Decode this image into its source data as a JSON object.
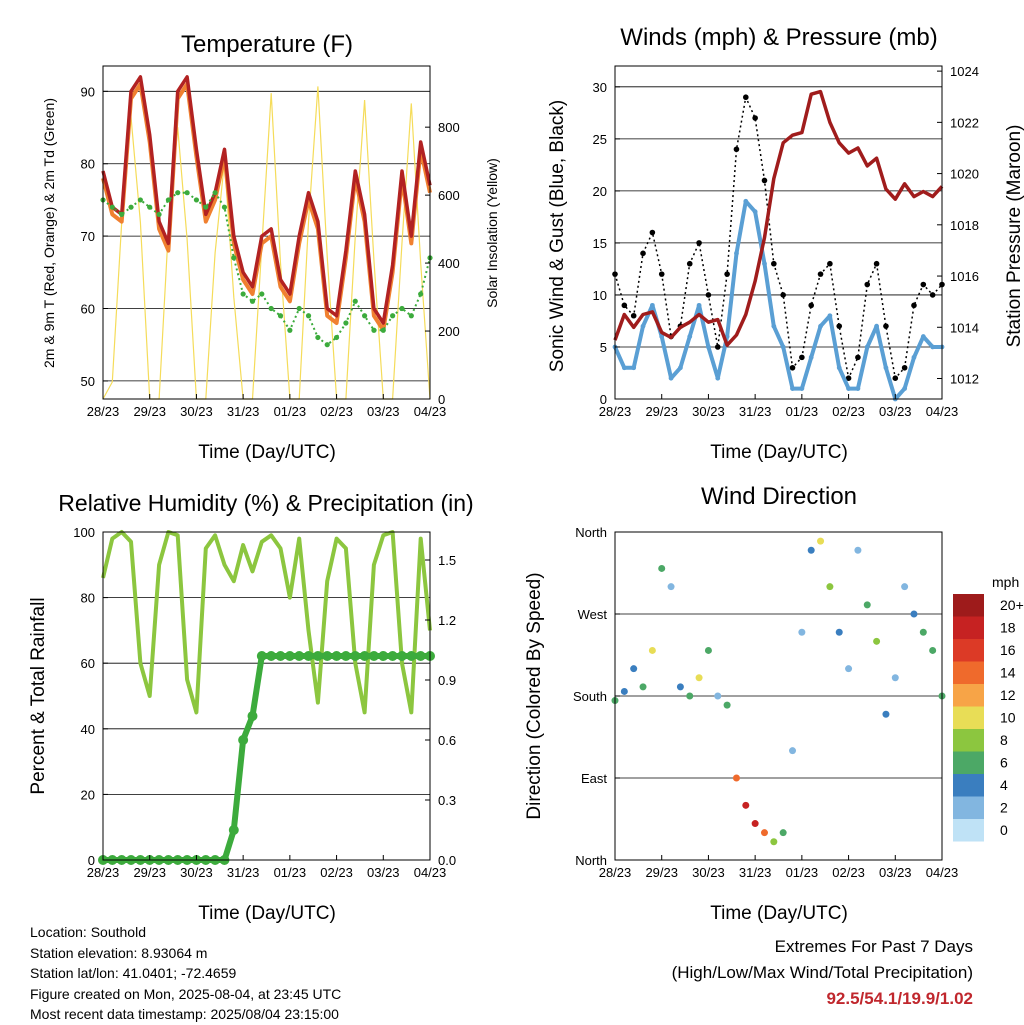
{
  "colors": {
    "temp_2m": "#b22222",
    "temp_9m": "#f08030",
    "dewpoint": "#3cab3c",
    "insolation": "#f5dc5a",
    "gust": "#000000",
    "wind": "#5a9fd4",
    "pressure": "#a01c1c",
    "rh": "#8cc63f",
    "precip": "#3cab3c",
    "extremes": "#c0272d"
  },
  "x_ticks": [
    "28/23",
    "29/23",
    "30/23",
    "31/23",
    "01/23",
    "02/23",
    "03/23",
    "04/23"
  ],
  "panels": {
    "temperature": {
      "title": "Temperature (F)",
      "ylabel_left": "2m & 9m T (Red, Orange) & 2m Td (Green)",
      "ylabel_right": "Solar Insolation (Yellow)",
      "xlabel": "Time (Day/UTC)",
      "yticks_left": [
        "50",
        "60",
        "70",
        "80",
        "90"
      ],
      "yticks_right": [
        "0",
        "200",
        "400",
        "600",
        "800"
      ]
    },
    "winds": {
      "title": "Winds (mph) & Pressure (mb)",
      "ylabel_left": "Sonic Wind & Gust (Blue, Black)",
      "ylabel_right": "Station Pressure (Maroon)",
      "xlabel": "Time (Day/UTC)",
      "yticks_left": [
        "0",
        "5",
        "10",
        "15",
        "20",
        "25",
        "30"
      ],
      "yticks_right": [
        "1012",
        "1014",
        "1016",
        "1018",
        "1020",
        "1022",
        "1024"
      ]
    },
    "humidity": {
      "title": "Relative Humidity (%) & Precipitation (in)",
      "ylabel_left": "Percent & Total Rainfall",
      "xlabel": "Time (Day/UTC)",
      "yticks_left": [
        "0",
        "20",
        "40",
        "60",
        "80",
        "100"
      ],
      "yticks_right": [
        "0.0",
        "0.3",
        "0.6",
        "0.9",
        "1.2",
        "1.5"
      ]
    },
    "direction": {
      "title": "Wind Direction",
      "ylabel_left": "Direction (Colored By Speed)",
      "xlabel": "Time (Day/UTC)",
      "yticks_left": [
        "North",
        "East",
        "South",
        "West",
        "North"
      ],
      "legend_title": "mph",
      "legend_labels": [
        "20+",
        "18",
        "16",
        "14",
        "12",
        "10",
        "8",
        "6",
        "4",
        "2",
        "0"
      ],
      "legend_colors": [
        "#9e1b1b",
        "#c62222",
        "#dc3a26",
        "#ef6a2c",
        "#f7a447",
        "#e8dd56",
        "#8cc63f",
        "#4ca866",
        "#3a7ebf",
        "#82b6e0",
        "#bfe2f6"
      ]
    }
  },
  "info": {
    "location": "Location: Southold",
    "elevation": "Station elevation: 8.93064 m",
    "latlon": "Station lat/lon: 41.0401; -72.4659",
    "created": "Figure created on Mon, 2025-08-04, at 23:45 UTC",
    "recent": "Most recent data timestamp: 2025/08/04 23:15:00"
  },
  "extremes": {
    "line1": "Extremes For Past 7 Days",
    "line2": "(High/Low/Max Wind/Total Precipitation)",
    "values": "92.5/54.1/19.9/1.02"
  },
  "chart_data": [
    {
      "type": "line",
      "title": "Temperature (F)",
      "xlabel": "Time (Day/UTC)",
      "ylabel": "2m & 9m T (Red, Orange) & 2m Td (Green)",
      "ylabel_right": "Solar Insolation (Yellow)",
      "xlim": [
        0,
        7
      ],
      "ylim": [
        47.5,
        93.5
      ],
      "ylim_right": [
        0,
        980
      ],
      "grid": true,
      "x": [
        0,
        0.2,
        0.4,
        0.6,
        0.8,
        1.0,
        1.2,
        1.4,
        1.6,
        1.8,
        2.0,
        2.2,
        2.4,
        2.6,
        2.8,
        3.0,
        3.2,
        3.4,
        3.6,
        3.8,
        4.0,
        4.2,
        4.4,
        4.6,
        4.8,
        5.0,
        5.2,
        5.4,
        5.6,
        5.8,
        6.0,
        6.2,
        6.4,
        6.6,
        6.8,
        7.0
      ],
      "series": [
        {
          "name": "2m T",
          "values": [
            79,
            74,
            73,
            90,
            92,
            84,
            72,
            69,
            90,
            92,
            82,
            73,
            76,
            82,
            70,
            65,
            63,
            70,
            71,
            64,
            62,
            70,
            76,
            72,
            60,
            59,
            68,
            79,
            73,
            60,
            58,
            66,
            79,
            70,
            83,
            77
          ]
        },
        {
          "name": "9m T",
          "values": [
            78,
            73,
            72,
            89,
            91,
            83,
            71,
            68,
            89,
            91,
            81,
            72,
            75,
            81,
            69,
            64,
            62,
            69,
            70,
            63,
            61,
            69,
            75,
            71,
            59,
            58,
            67,
            78,
            72,
            59,
            57,
            65,
            78,
            69,
            82,
            76
          ]
        },
        {
          "name": "2m Td",
          "values": [
            75,
            74,
            73,
            74,
            75,
            74,
            73,
            75,
            76,
            76,
            75,
            74,
            76,
            74,
            67,
            62,
            61,
            62,
            60,
            59,
            57,
            60,
            59,
            56,
            55,
            56,
            58,
            61,
            59,
            57,
            57,
            59,
            60,
            59,
            62,
            67
          ]
        },
        {
          "name": "Solar Insolation",
          "axis": "right",
          "values": [
            0,
            50,
            520,
            830,
            520,
            0,
            0,
            500,
            800,
            470,
            0,
            0,
            430,
            700,
            300,
            0,
            0,
            450,
            900,
            400,
            0,
            0,
            520,
            920,
            420,
            0,
            0,
            480,
            880,
            410,
            0,
            0,
            460,
            870,
            400,
            0
          ]
        }
      ]
    },
    {
      "type": "scatter",
      "title": "Winds (mph) & Pressure (mb)",
      "xlabel": "Time (Day/UTC)",
      "ylabel": "Sonic Wind & Gust (Blue, Black)",
      "ylabel_right": "Station Pressure (Maroon)",
      "xlim": [
        0,
        7
      ],
      "ylim": [
        0,
        32
      ],
      "ylim_right": [
        1011.2,
        1024.2
      ],
      "grid": true,
      "x": [
        0,
        0.2,
        0.4,
        0.6,
        0.8,
        1.0,
        1.2,
        1.4,
        1.6,
        1.8,
        2.0,
        2.2,
        2.4,
        2.6,
        2.8,
        3.0,
        3.2,
        3.4,
        3.6,
        3.8,
        4.0,
        4.2,
        4.4,
        4.6,
        4.8,
        5.0,
        5.2,
        5.4,
        5.6,
        5.8,
        6.0,
        6.2,
        6.4,
        6.6,
        6.8,
        7.0
      ],
      "series": [
        {
          "name": "Gust",
          "values": [
            12,
            9,
            8,
            14,
            16,
            12,
            6,
            7,
            13,
            15,
            10,
            5,
            12,
            24,
            29,
            27,
            21,
            13,
            10,
            3,
            4,
            9,
            12,
            13,
            7,
            2,
            4,
            11,
            13,
            7,
            2,
            3,
            9,
            11,
            10,
            11
          ]
        },
        {
          "name": "Sonic Wind",
          "values": [
            5,
            3,
            3,
            7,
            9,
            6,
            2,
            3,
            6,
            9,
            5,
            2,
            6,
            14,
            19,
            18,
            13,
            7,
            5,
            1,
            1,
            4,
            7,
            8,
            3,
            1,
            1,
            5,
            7,
            3,
            0,
            1,
            4,
            6,
            5,
            5
          ]
        },
        {
          "name": "Station Pressure",
          "axis": "right",
          "values": [
            1013.5,
            1014.5,
            1014.0,
            1014.5,
            1014.6,
            1013.8,
            1013.6,
            1014.0,
            1014.2,
            1014.5,
            1014.2,
            1014.3,
            1013.3,
            1013.7,
            1014.5,
            1015.8,
            1017.5,
            1019.8,
            1021.2,
            1021.5,
            1021.6,
            1023.1,
            1023.2,
            1022.0,
            1021.2,
            1020.8,
            1021.0,
            1020.3,
            1020.6,
            1019.4,
            1019.0,
            1019.6,
            1019.1,
            1019.3,
            1019.1,
            1019.5
          ]
        }
      ]
    },
    {
      "type": "line",
      "title": "Relative Humidity (%) & Precipitation (in)",
      "xlabel": "Time (Day/UTC)",
      "ylabel": "Percent & Total Rainfall",
      "xlim": [
        0,
        7
      ],
      "ylim": [
        0,
        100
      ],
      "ylim_right": [
        0,
        1.64
      ],
      "grid": true,
      "x": [
        0,
        0.2,
        0.4,
        0.6,
        0.8,
        1.0,
        1.2,
        1.4,
        1.6,
        1.8,
        2.0,
        2.2,
        2.4,
        2.6,
        2.8,
        3.0,
        3.2,
        3.4,
        3.6,
        3.8,
        4.0,
        4.2,
        4.4,
        4.6,
        4.8,
        5.0,
        5.2,
        5.4,
        5.6,
        5.8,
        6.0,
        6.2,
        6.4,
        6.6,
        6.8,
        7.0
      ],
      "series": [
        {
          "name": "Relative Humidity",
          "values": [
            86,
            98,
            100,
            97,
            60,
            50,
            90,
            100,
            99,
            55,
            45,
            95,
            99,
            90,
            85,
            96,
            88,
            97,
            99,
            95,
            80,
            98,
            70,
            48,
            85,
            98,
            95,
            60,
            45,
            90,
            99,
            100,
            60,
            45,
            98,
            70
          ]
        },
        {
          "name": "Total Rainfall",
          "axis": "right",
          "values": [
            0,
            0,
            0,
            0,
            0,
            0,
            0,
            0,
            0,
            0,
            0,
            0,
            0,
            0,
            0.15,
            0.6,
            0.72,
            1.02,
            1.02,
            1.02,
            1.02,
            1.02,
            1.02,
            1.02,
            1.02,
            1.02,
            1.02,
            1.02,
            1.02,
            1.02,
            1.02,
            1.02,
            1.02,
            1.02,
            1.02,
            1.02
          ]
        }
      ]
    },
    {
      "type": "scatter",
      "title": "Wind Direction",
      "xlabel": "Time (Day/UTC)",
      "ylabel": "Direction (Colored By Speed)",
      "xlim": [
        0,
        7
      ],
      "ylim": [
        0,
        360
      ],
      "grid": true,
      "x": [
        0,
        0.2,
        0.4,
        0.6,
        0.8,
        1.0,
        1.2,
        1.4,
        1.6,
        1.8,
        2.0,
        2.2,
        2.4,
        2.6,
        2.8,
        3.0,
        3.2,
        3.4,
        3.6,
        3.8,
        4.0,
        4.2,
        4.4,
        4.6,
        4.8,
        5.0,
        5.2,
        5.4,
        5.6,
        5.8,
        6.0,
        6.2,
        6.4,
        6.6,
        6.8,
        7.0
      ],
      "series": [
        {
          "name": "Direction",
          "values": [
            175,
            185,
            210,
            190,
            230,
            320,
            300,
            190,
            180,
            200,
            230,
            180,
            170,
            90,
            60,
            40,
            30,
            20,
            30,
            120,
            250,
            340,
            350,
            300,
            250,
            210,
            340,
            280,
            240,
            160,
            200,
            300,
            270,
            250,
            230,
            180
          ]
        },
        {
          "name": "Speed",
          "values": [
            5,
            3,
            3,
            6,
            9,
            5,
            2,
            3,
            6,
            9,
            5,
            2,
            6,
            14,
            18,
            17,
            13,
            7,
            5,
            1,
            1,
            4,
            9,
            8,
            3,
            1,
            1,
            5,
            7,
            3,
            1,
            1,
            4,
            6,
            5,
            5
          ]
        }
      ]
    }
  ]
}
